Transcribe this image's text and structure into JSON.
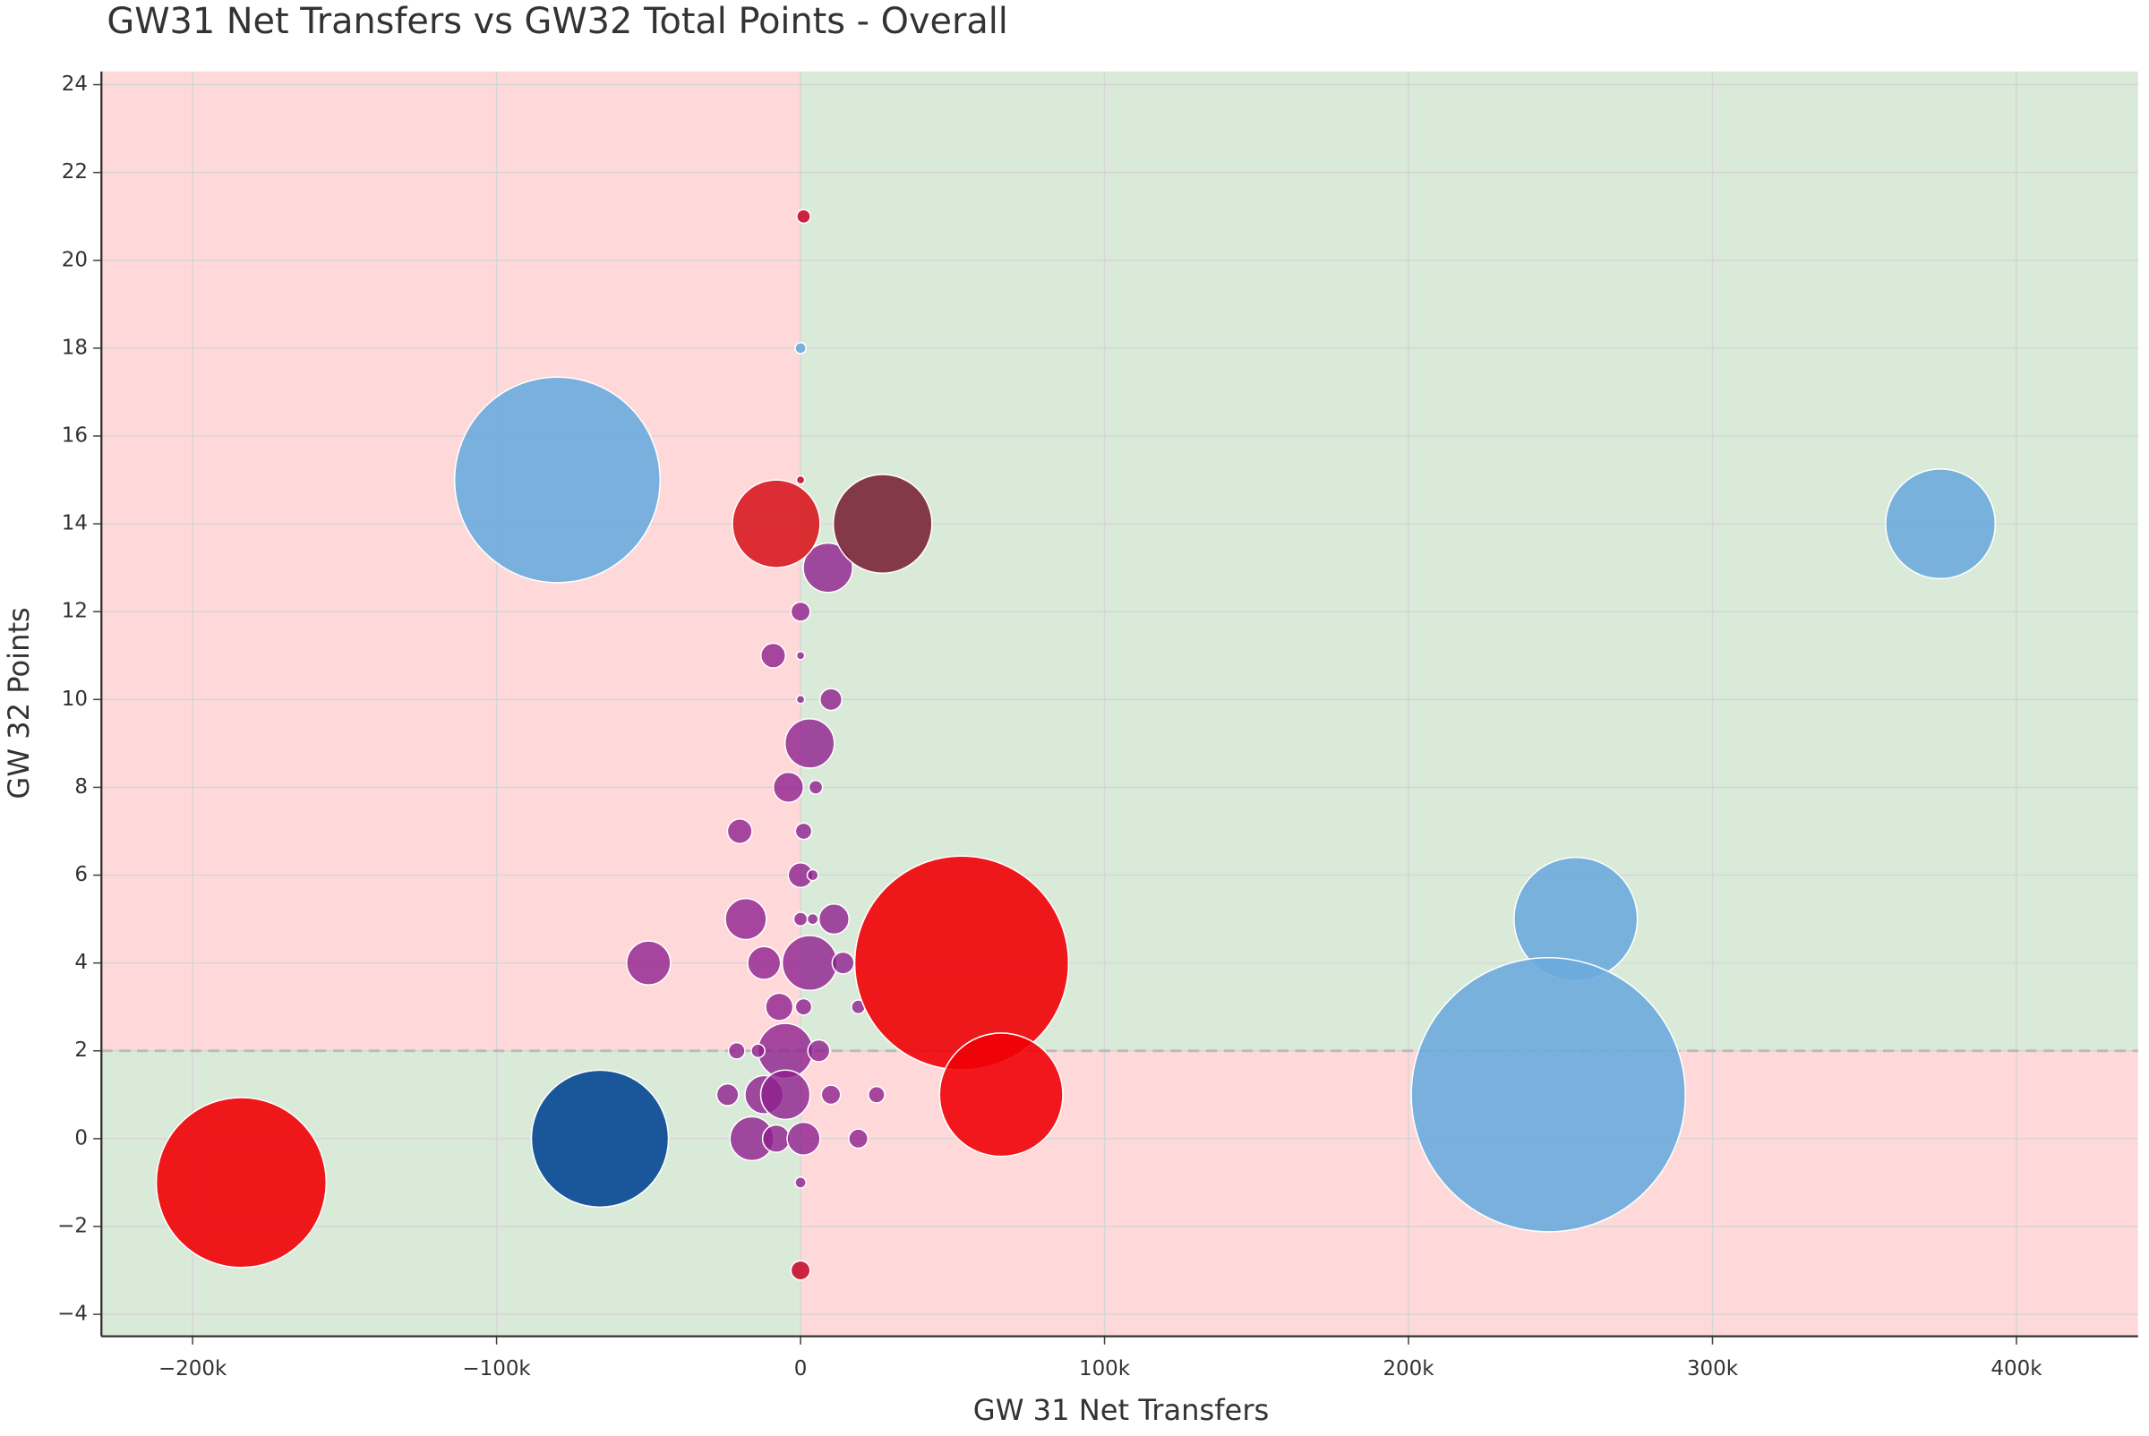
{
  "chart_data": {
    "type": "bubble",
    "title": "GW31 Net Transfers vs GW32 Total Points - Overall",
    "x_label": "GW 31 Net Transfers",
    "y_label": "GW 32 Points",
    "xlim": [
      -230000,
      440000
    ],
    "ylim": [
      -4.5,
      24.3
    ],
    "xticks": [
      {
        "value": -200000,
        "label": "−200k"
      },
      {
        "value": -100000,
        "label": "−100k"
      },
      0,
      {
        "value": 100000,
        "label": "100k"
      },
      {
        "value": 200000,
        "label": "200k"
      },
      {
        "value": 300000,
        "label": "300k"
      },
      {
        "value": 400000,
        "label": "400k"
      }
    ],
    "yticks": [
      {
        "value": -4,
        "label": "−4"
      },
      {
        "value": -2,
        "label": "−2"
      },
      0,
      2,
      4,
      6,
      8,
      10,
      12,
      14,
      16,
      18,
      20,
      22,
      24
    ],
    "grid": true,
    "quadrant_split": {
      "x": 0,
      "y": 2
    },
    "quadrant_colors": {
      "good": "#d9ead8",
      "bad": "#ffd9d9"
    },
    "series": [
      {
        "color": "#8e1f8e",
        "x": [
          9000,
          0,
          -9000,
          0,
          10000,
          0,
          3000,
          -4000,
          5000,
          -20000,
          1000,
          0,
          4000,
          -18000,
          0,
          11000,
          4000,
          -50000,
          -12000,
          3000,
          14000,
          -7000,
          1000,
          19000,
          -21000,
          -5000,
          6000,
          -14000,
          -24000,
          -12000,
          -5000,
          10000,
          25000,
          -16000,
          -8000,
          1000,
          19000,
          0
        ],
        "y": [
          13,
          12,
          11,
          11,
          10,
          10,
          9,
          8,
          8,
          7,
          7,
          6,
          6,
          5,
          5,
          5,
          5,
          4,
          4,
          4,
          4,
          3,
          3,
          3,
          2,
          2,
          2,
          2,
          1,
          1,
          1,
          1,
          1,
          0,
          0,
          0,
          0,
          -1
        ],
        "sizes": [
          18,
          7,
          9,
          3,
          8,
          3,
          18,
          11,
          5,
          9,
          6,
          9,
          4,
          15,
          5,
          11,
          4,
          16,
          12,
          20,
          8,
          10,
          6,
          5,
          6,
          20,
          8,
          5,
          8,
          14,
          18,
          7,
          6,
          16,
          10,
          12,
          7,
          4
        ]
      },
      {
        "colors": [
          "#6cabdd",
          "#d71920",
          "#7a263a",
          "#6cabdd",
          "#ef0107",
          "#6cabdd",
          "#6cabdd",
          "#ef0107",
          "#ef0107",
          "#034694",
          "#c8102e",
          "#6cabdd",
          "#c8102e",
          "#c8102e"
        ],
        "x": [
          -80000,
          -8000,
          27000,
          375000,
          53000,
          255000,
          246000,
          66000,
          -184000,
          -66000,
          1000,
          0,
          0,
          0
        ],
        "y": [
          15,
          14,
          14,
          14,
          4,
          5,
          1,
          1,
          -1,
          0,
          21,
          18,
          15,
          -3
        ],
        "sizes": [
          75,
          32,
          36,
          40,
          78,
          45,
          100,
          45,
          62,
          50,
          5,
          4,
          3,
          7
        ]
      }
    ]
  }
}
